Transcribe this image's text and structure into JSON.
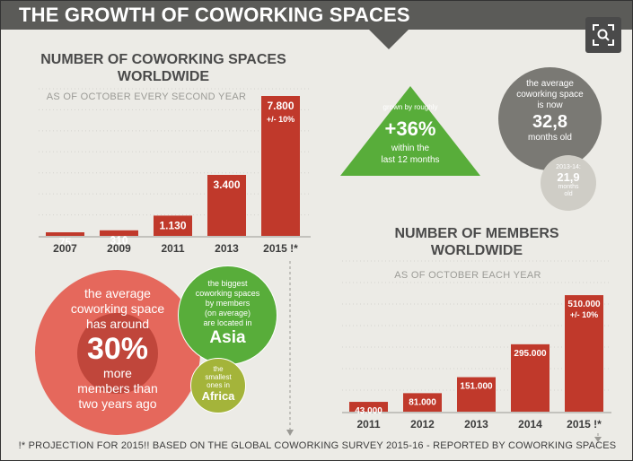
{
  "header": {
    "title": "THE GROWTH OF COWORKING SPACES"
  },
  "colors": {
    "bar": "#c0392b",
    "bar_dark": "#a93226",
    "header_bg": "#5b5b58",
    "green": "#58ad3a",
    "gray_circle": "#7a7974",
    "salmon": "#e5685c",
    "olive": "#a4b43a"
  },
  "chart_data": [
    {
      "type": "bar",
      "title": "NUMBER OF COWORKING SPACES WORLDWIDE",
      "subtitle": "AS OF OCTOBER EVERY SECOND YEAR",
      "categories": [
        "2007",
        "2009",
        "2011",
        "2013",
        "2015 !*"
      ],
      "values": [
        75,
        310,
        1130,
        3400,
        7800
      ],
      "labels": [
        "75",
        "310",
        "1.130",
        "3.400",
        "7.800"
      ],
      "note": "+/- 10%",
      "ylim": [
        0,
        8100
      ]
    },
    {
      "type": "bar",
      "title": "NUMBER OF MEMBERS WORLDWIDE",
      "subtitle": "AS OF OCTOBER EACH YEAR",
      "categories": [
        "2011",
        "2012",
        "2013",
        "2014",
        "2015 !*"
      ],
      "values": [
        43000,
        81000,
        151000,
        295000,
        510000
      ],
      "labels": [
        "43.000",
        "81.000",
        "151.000",
        "295.000",
        "510.000"
      ],
      "note": "+/- 10%",
      "ylim": [
        0,
        530000
      ]
    }
  ],
  "growth": {
    "small": "grown by roughly",
    "big": "+36%",
    "bottom1": "within the",
    "bottom2": "last 12 months"
  },
  "age": {
    "line1": "the average",
    "line2": "coworking space",
    "line3": "is now",
    "value": "32,8",
    "unit": "months old"
  },
  "age_old": {
    "year": "2013-14:",
    "value": "21,9",
    "line1": "months",
    "line2": "old"
  },
  "members_circle": {
    "line1": "the average",
    "line2": "coworking space",
    "line3": "has around",
    "value": "30%",
    "line4": "more",
    "line5": "members than",
    "line6": "two years ago"
  },
  "asia_circle": {
    "line1": "the biggest",
    "line2": "coworking spaces",
    "line3": "by members",
    "line4": "(on average)",
    "line5": "are located in",
    "value": "Asia"
  },
  "africa_circle": {
    "line1": "the",
    "line2": "smallest",
    "line3": "ones in",
    "value": "Africa"
  },
  "footer": {
    "text": "!* PROJECTION FOR 2015!! BASED ON THE GLOBAL COWORKING SURVEY 2015-16 - REPORTED BY COWORKING SPACES"
  }
}
